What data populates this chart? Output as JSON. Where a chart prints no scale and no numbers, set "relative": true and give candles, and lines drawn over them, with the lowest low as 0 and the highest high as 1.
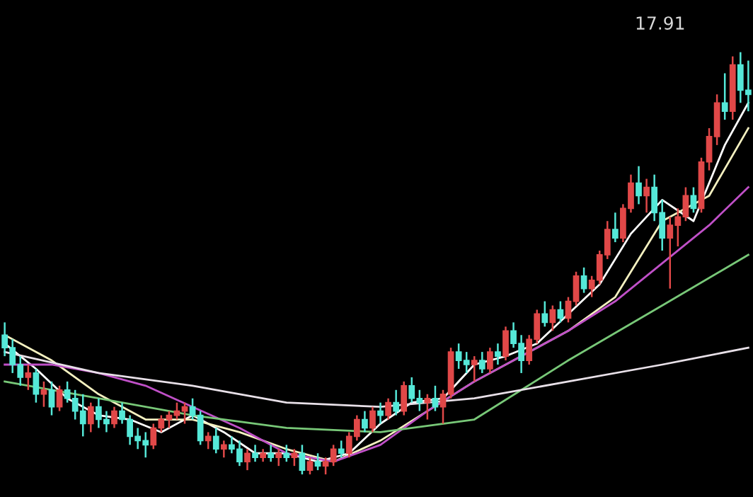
{
  "chart_data": {
    "type": "candlestick",
    "relative": true,
    "grid": false,
    "legend": false,
    "categories": [
      null,
      null,
      null,
      null,
      null,
      null,
      null,
      null,
      null,
      null,
      null,
      null,
      null,
      null,
      null,
      null,
      null,
      null,
      null,
      null,
      null,
      null,
      null,
      null,
      null,
      null,
      null,
      null,
      null,
      null,
      null,
      null,
      null,
      null,
      null,
      null,
      null,
      null,
      null,
      null,
      null,
      null,
      null,
      null,
      null,
      null,
      null,
      null,
      null,
      null,
      null,
      null,
      null,
      null,
      null,
      null,
      null,
      null,
      null,
      null,
      null,
      null,
      null,
      null,
      null,
      null,
      null,
      null,
      null,
      null,
      null,
      null,
      null,
      null,
      null,
      null,
      null,
      null,
      null,
      null,
      null,
      null,
      null,
      null,
      null,
      null,
      null,
      null,
      null,
      null,
      null,
      null,
      null,
      null,
      null,
      null
    ],
    "colors": [
      "#55e8d8",
      "#55e8d8",
      "#55e8d8",
      "#e04848",
      "#55e8d8",
      "#e04848",
      "#55e8d8",
      "#e04848",
      "#55e8d8",
      "#55e8d8",
      "#55e8d8",
      "#e04848",
      "#55e8d8",
      "#55e8d8",
      "#e04848",
      "#55e8d8",
      "#55e8d8",
      "#55e8d8",
      "#55e8d8",
      "#e04848",
      "#e04848",
      "#e04848",
      "#e04848",
      "#e04848",
      "#55e8d8",
      "#55e8d8",
      "#e04848",
      "#55e8d8",
      "#e04848",
      "#55e8d8",
      "#55e8d8",
      "#e04848",
      "#55e8d8",
      "#e04848",
      "#55e8d8",
      "#e04848",
      "#55e8d8",
      "#e04848",
      "#55e8d8",
      "#e04848",
      "#55e8d8",
      "#e04848",
      "#e04848",
      "#55e8d8",
      "#e04848",
      "#e04848",
      "#55e8d8",
      "#e04848",
      "#55e8d8",
      "#e04848",
      "#55e8d8",
      "#e04848",
      "#55e8d8",
      "#55e8d8",
      "#e04848",
      "#55e8d8",
      "#e04848",
      "#e04848",
      "#55e8d8",
      "#55e8d8",
      "#e04848",
      "#55e8d8",
      "#e04848",
      "#55e8d8",
      "#e04848",
      "#55e8d8",
      "#55e8d8",
      "#e04848",
      "#e04848",
      "#55e8d8",
      "#e04848",
      "#55e8d8",
      "#e04848",
      "#e04848",
      "#55e8d8",
      "#e04848",
      "#e04848",
      "#e04848",
      "#55e8d8",
      "#e04848",
      "#e04848",
      "#55e8d8",
      "#e04848",
      "#55e8d8",
      "#55e8d8",
      "#e04848",
      "#e04848",
      "#e04848",
      "#55e8d8",
      "#e04848",
      "#e04848",
      "#e04848",
      "#55e8d8",
      "#e04848",
      "#55e8d8",
      "#55e8d8"
    ],
    "ohlc": [
      [
        0.33,
        0.36,
        0.28,
        0.3
      ],
      [
        0.3,
        0.32,
        0.24,
        0.26
      ],
      [
        0.26,
        0.28,
        0.21,
        0.23
      ],
      [
        0.23,
        0.26,
        0.2,
        0.24
      ],
      [
        0.24,
        0.25,
        0.17,
        0.19
      ],
      [
        0.19,
        0.22,
        0.16,
        0.2
      ],
      [
        0.2,
        0.22,
        0.14,
        0.16
      ],
      [
        0.16,
        0.21,
        0.15,
        0.2
      ],
      [
        0.2,
        0.22,
        0.17,
        0.18
      ],
      [
        0.18,
        0.2,
        0.13,
        0.15
      ],
      [
        0.15,
        0.19,
        0.09,
        0.12
      ],
      [
        0.12,
        0.17,
        0.1,
        0.16
      ],
      [
        0.16,
        0.18,
        0.11,
        0.13
      ],
      [
        0.13,
        0.15,
        0.1,
        0.12
      ],
      [
        0.12,
        0.16,
        0.11,
        0.15
      ],
      [
        0.15,
        0.17,
        0.12,
        0.13
      ],
      [
        0.13,
        0.14,
        0.07,
        0.09
      ],
      [
        0.09,
        0.11,
        0.06,
        0.08
      ],
      [
        0.08,
        0.1,
        0.04,
        0.07
      ],
      [
        0.07,
        0.12,
        0.06,
        0.11
      ],
      [
        0.11,
        0.14,
        0.1,
        0.13
      ],
      [
        0.13,
        0.15,
        0.11,
        0.14
      ],
      [
        0.14,
        0.17,
        0.13,
        0.15
      ],
      [
        0.15,
        0.17,
        0.12,
        0.16
      ],
      [
        0.16,
        0.18,
        0.13,
        0.14
      ],
      [
        0.14,
        0.15,
        0.07,
        0.08
      ],
      [
        0.08,
        0.1,
        0.06,
        0.09
      ],
      [
        0.09,
        0.11,
        0.05,
        0.06
      ],
      [
        0.06,
        0.08,
        0.04,
        0.07
      ],
      [
        0.07,
        0.09,
        0.05,
        0.06
      ],
      [
        0.06,
        0.08,
        0.02,
        0.03
      ],
      [
        0.03,
        0.06,
        0.01,
        0.05
      ],
      [
        0.05,
        0.07,
        0.03,
        0.04
      ],
      [
        0.04,
        0.06,
        0.03,
        0.05
      ],
      [
        0.05,
        0.07,
        0.03,
        0.04
      ],
      [
        0.04,
        0.06,
        0.02,
        0.05
      ],
      [
        0.05,
        0.07,
        0.03,
        0.04
      ],
      [
        0.04,
        0.06,
        0.02,
        0.05
      ],
      [
        0.05,
        0.07,
        0.0,
        0.01
      ],
      [
        0.01,
        0.04,
        0.0,
        0.03
      ],
      [
        0.03,
        0.05,
        0.01,
        0.02
      ],
      [
        0.02,
        0.04,
        0.0,
        0.03
      ],
      [
        0.03,
        0.07,
        0.02,
        0.06
      ],
      [
        0.06,
        0.08,
        0.04,
        0.05
      ],
      [
        0.05,
        0.1,
        0.04,
        0.09
      ],
      [
        0.09,
        0.14,
        0.08,
        0.13
      ],
      [
        0.13,
        0.15,
        0.1,
        0.11
      ],
      [
        0.11,
        0.16,
        0.1,
        0.15
      ],
      [
        0.15,
        0.17,
        0.12,
        0.14
      ],
      [
        0.14,
        0.18,
        0.13,
        0.17
      ],
      [
        0.17,
        0.2,
        0.14,
        0.15
      ],
      [
        0.15,
        0.22,
        0.14,
        0.21
      ],
      [
        0.21,
        0.23,
        0.17,
        0.18
      ],
      [
        0.18,
        0.2,
        0.15,
        0.17
      ],
      [
        0.17,
        0.19,
        0.13,
        0.18
      ],
      [
        0.18,
        0.21,
        0.15,
        0.16
      ],
      [
        0.16,
        0.2,
        0.12,
        0.19
      ],
      [
        0.19,
        0.3,
        0.18,
        0.29
      ],
      [
        0.29,
        0.31,
        0.25,
        0.27
      ],
      [
        0.27,
        0.29,
        0.24,
        0.26
      ],
      [
        0.26,
        0.28,
        0.22,
        0.27
      ],
      [
        0.27,
        0.29,
        0.24,
        0.25
      ],
      [
        0.25,
        0.3,
        0.24,
        0.29
      ],
      [
        0.29,
        0.31,
        0.26,
        0.28
      ],
      [
        0.28,
        0.35,
        0.27,
        0.34
      ],
      [
        0.34,
        0.36,
        0.3,
        0.31
      ],
      [
        0.31,
        0.33,
        0.24,
        0.27
      ],
      [
        0.27,
        0.33,
        0.26,
        0.32
      ],
      [
        0.32,
        0.39,
        0.31,
        0.38
      ],
      [
        0.38,
        0.41,
        0.35,
        0.36
      ],
      [
        0.36,
        0.4,
        0.34,
        0.39
      ],
      [
        0.39,
        0.41,
        0.36,
        0.37
      ],
      [
        0.37,
        0.42,
        0.36,
        0.41
      ],
      [
        0.41,
        0.48,
        0.4,
        0.47
      ],
      [
        0.47,
        0.49,
        0.43,
        0.44
      ],
      [
        0.44,
        0.47,
        0.42,
        0.46
      ],
      [
        0.46,
        0.53,
        0.45,
        0.52
      ],
      [
        0.52,
        0.6,
        0.51,
        0.58
      ],
      [
        0.58,
        0.62,
        0.55,
        0.56
      ],
      [
        0.56,
        0.64,
        0.55,
        0.63
      ],
      [
        0.63,
        0.71,
        0.62,
        0.69
      ],
      [
        0.69,
        0.73,
        0.64,
        0.66
      ],
      [
        0.66,
        0.7,
        0.62,
        0.68
      ],
      [
        0.68,
        0.71,
        0.6,
        0.62
      ],
      [
        0.62,
        0.65,
        0.53,
        0.56
      ],
      [
        0.56,
        0.61,
        0.44,
        0.59
      ],
      [
        0.59,
        0.63,
        0.54,
        0.61
      ],
      [
        0.61,
        0.68,
        0.6,
        0.66
      ],
      [
        0.66,
        0.68,
        0.62,
        0.63
      ],
      [
        0.63,
        0.75,
        0.62,
        0.74
      ],
      [
        0.74,
        0.82,
        0.72,
        0.8
      ],
      [
        0.8,
        0.9,
        0.78,
        0.88
      ],
      [
        0.88,
        0.95,
        0.84,
        0.86
      ],
      [
        0.86,
        0.99,
        0.84,
        0.97
      ],
      [
        0.97,
        1.0,
        0.88,
        0.91
      ],
      [
        0.91,
        0.98,
        0.86,
        0.9
      ]
    ],
    "series": [
      {
        "type": "line",
        "color": "#ffffff",
        "values": [
          0.31,
          null,
          null,
          null,
          0.25,
          null,
          null,
          null,
          0.18,
          null,
          null,
          null,
          0.14,
          null,
          null,
          null,
          0.13,
          null,
          null,
          null,
          0.1,
          null,
          null,
          null,
          0.14,
          null,
          null,
          null,
          0.1,
          null,
          null,
          null,
          0.05,
          null,
          null,
          null,
          0.05,
          null,
          null,
          null,
          0.03,
          null,
          null,
          null,
          0.05,
          null,
          null,
          null,
          0.12,
          null,
          null,
          null,
          0.17,
          null,
          null,
          null,
          0.18,
          null,
          null,
          null,
          0.26,
          null,
          null,
          null,
          0.28,
          null,
          null,
          null,
          0.31,
          null,
          null,
          null,
          0.38,
          null,
          null,
          null,
          0.45,
          null,
          null,
          null,
          0.57,
          null,
          null,
          null,
          0.65,
          null,
          null,
          null,
          0.6,
          null,
          null,
          null,
          0.78,
          null,
          null,
          0.88
        ]
      },
      {
        "type": "line",
        "color": "#f4f0c0",
        "values": [
          0.33,
          null,
          null,
          null,
          null,
          null,
          0.27,
          null,
          null,
          null,
          null,
          null,
          0.19,
          null,
          null,
          null,
          null,
          null,
          0.13,
          null,
          null,
          null,
          null,
          null,
          0.13,
          null,
          null,
          null,
          null,
          null,
          0.1,
          null,
          null,
          null,
          null,
          null,
          0.06,
          null,
          null,
          null,
          null,
          null,
          0.03,
          null,
          null,
          null,
          null,
          null,
          0.08,
          null,
          null,
          null,
          null,
          null,
          0.15,
          null,
          null,
          null,
          null,
          null,
          0.22,
          null,
          null,
          null,
          null,
          null,
          0.28,
          null,
          null,
          null,
          null,
          null,
          0.34,
          null,
          null,
          null,
          null,
          null,
          0.42,
          null,
          null,
          null,
          null,
          null,
          0.6,
          null,
          null,
          null,
          null,
          null,
          0.66,
          null,
          null,
          null,
          null,
          0.82
        ]
      },
      {
        "type": "line",
        "color": "#c050c8",
        "values": [
          0.26,
          null,
          null,
          null,
          null,
          null,
          0.26,
          null,
          null,
          null,
          null,
          null,
          0.24,
          null,
          null,
          null,
          null,
          null,
          0.21,
          null,
          null,
          null,
          null,
          null,
          0.16,
          null,
          null,
          null,
          null,
          null,
          0.11,
          null,
          null,
          null,
          null,
          null,
          0.05,
          null,
          null,
          null,
          null,
          null,
          0.03,
          null,
          null,
          null,
          null,
          null,
          0.07,
          null,
          null,
          null,
          null,
          null,
          0.15,
          null,
          null,
          null,
          null,
          null,
          0.22,
          null,
          null,
          null,
          null,
          null,
          0.28,
          null,
          null,
          null,
          null,
          null,
          0.34,
          null,
          null,
          null,
          null,
          null,
          0.41,
          null,
          null,
          null,
          null,
          null,
          0.5,
          null,
          null,
          null,
          null,
          null,
          0.59,
          null,
          null,
          null,
          null,
          0.68
        ]
      },
      {
        "type": "line",
        "color": "#78c878",
        "values": [
          0.22,
          null,
          null,
          null,
          null,
          null,
          null,
          null,
          null,
          null,
          null,
          null,
          0.18,
          null,
          null,
          null,
          null,
          null,
          null,
          null,
          null,
          null,
          null,
          null,
          0.14,
          null,
          null,
          null,
          null,
          null,
          null,
          null,
          null,
          null,
          null,
          null,
          0.11,
          null,
          null,
          null,
          null,
          null,
          null,
          null,
          null,
          null,
          null,
          null,
          0.1,
          null,
          null,
          null,
          null,
          null,
          null,
          null,
          null,
          null,
          null,
          null,
          0.13,
          null,
          null,
          null,
          null,
          null,
          null,
          null,
          null,
          null,
          null,
          null,
          0.27,
          null,
          null,
          null,
          null,
          null,
          null,
          null,
          null,
          null,
          null,
          null,
          0.4,
          null,
          null,
          null,
          null,
          null,
          null,
          null,
          null,
          null,
          null,
          0.52
        ]
      },
      {
        "type": "line",
        "color": "#e8e0e8",
        "values": [
          0.29,
          null,
          null,
          null,
          null,
          null,
          null,
          null,
          null,
          null,
          null,
          null,
          0.24,
          null,
          null,
          null,
          null,
          null,
          null,
          null,
          null,
          null,
          null,
          null,
          0.21,
          null,
          null,
          null,
          null,
          null,
          null,
          null,
          null,
          null,
          null,
          null,
          0.17,
          null,
          null,
          null,
          null,
          null,
          null,
          null,
          null,
          null,
          null,
          null,
          0.16,
          null,
          null,
          null,
          null,
          null,
          null,
          null,
          null,
          null,
          null,
          null,
          0.18,
          null,
          null,
          null,
          null,
          null,
          null,
          null,
          null,
          null,
          null,
          null,
          0.22,
          null,
          null,
          null,
          null,
          null,
          null,
          null,
          null,
          null,
          null,
          null,
          0.26,
          null,
          null,
          null,
          null,
          null,
          null,
          null,
          null,
          null,
          null,
          0.3
        ]
      }
    ],
    "annotations": [
      "17.91"
    ]
  }
}
